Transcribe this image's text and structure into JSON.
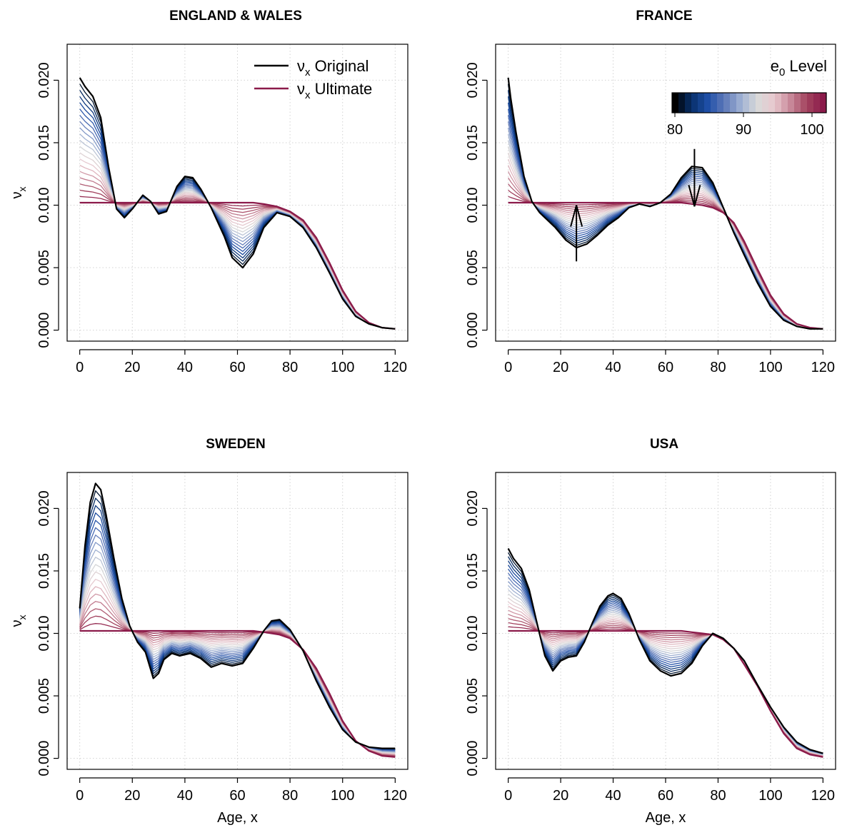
{
  "colors": {
    "original": "#000000",
    "ultimate": "#8B1A4A",
    "ramp": [
      "#000000",
      "#08306B",
      "#1F4FA8",
      "#5E79B8",
      "#9FB1D3",
      "#D9D9D9",
      "#E8C9CF",
      "#C98A9B",
      "#A3445F",
      "#8B1A4A"
    ]
  },
  "legend": {
    "original_sym": "ν",
    "original_sub": "x",
    "original_label": " Original",
    "ultimate_sym": "ν",
    "ultimate_sub": "x",
    "ultimate_label": " Ultimate"
  },
  "colorbar": {
    "title_main": "e",
    "title_sub": "0",
    "title_rest": " Level",
    "ticks": [
      "80",
      "90",
      "100"
    ]
  },
  "chart_data": [
    {
      "type": "line",
      "title": "ENGLAND & WALES",
      "xlabel": "",
      "ylabel_sym": "ν",
      "ylabel_sub": "x",
      "xlim": [
        0,
        120
      ],
      "ylim": [
        0,
        0.022
      ],
      "xticks": [
        "0",
        "20",
        "40",
        "60",
        "80",
        "100",
        "120"
      ],
      "yticks": [
        "0.000",
        "0.005",
        "0.010",
        "0.015",
        "0.020"
      ],
      "grid": true,
      "num_interpolated_curves": 20,
      "x": [
        0,
        2,
        5,
        8,
        11,
        14,
        17,
        20,
        24,
        27,
        30,
        33,
        37,
        40,
        43,
        46,
        50,
        55,
        58,
        62,
        66,
        70,
        75,
        80,
        85,
        90,
        95,
        100,
        105,
        110,
        115,
        120
      ],
      "series": [
        {
          "values": [
            0.0202,
            0.0195,
            0.0187,
            0.017,
            0.013,
            0.0097,
            0.009,
            0.0097,
            0.0108,
            0.0103,
            0.0093,
            0.0095,
            0.0115,
            0.0123,
            0.0122,
            0.0113,
            0.0098,
            0.0075,
            0.0058,
            0.005,
            0.0061,
            0.0082,
            0.0094,
            0.0091,
            0.0082,
            0.0066,
            0.0046,
            0.0025,
            0.0011,
            0.0005,
            0.0002,
            0.0001
          ]
        },
        {
          "values": [
            0.0102,
            0.0102,
            0.0102,
            0.0102,
            0.0102,
            0.0102,
            0.0102,
            0.0102,
            0.0102,
            0.0102,
            0.0102,
            0.0102,
            0.0102,
            0.0102,
            0.0102,
            0.0102,
            0.0102,
            0.0102,
            0.0102,
            0.0102,
            0.0102,
            0.0101,
            0.0099,
            0.0095,
            0.0088,
            0.0074,
            0.0054,
            0.0032,
            0.0015,
            0.0006,
            0.0002,
            0.0001
          ]
        }
      ]
    },
    {
      "type": "line",
      "title": "FRANCE",
      "xlabel": "",
      "ylabel_sym": "",
      "ylabel_sub": "",
      "xlim": [
        0,
        120
      ],
      "ylim": [
        0,
        0.022
      ],
      "xticks": [
        "0",
        "20",
        "40",
        "60",
        "80",
        "100",
        "120"
      ],
      "yticks": [
        "0.000",
        "0.005",
        "0.010",
        "0.015",
        "0.020"
      ],
      "grid": true,
      "num_interpolated_curves": 20,
      "x": [
        0,
        1,
        3,
        6,
        9,
        12,
        15,
        18,
        22,
        26,
        30,
        34,
        38,
        42,
        46,
        50,
        54,
        58,
        62,
        66,
        70,
        74,
        78,
        82,
        86,
        90,
        95,
        100,
        105,
        110,
        115,
        120
      ],
      "series": [
        {
          "values": [
            0.0202,
            0.0185,
            0.0158,
            0.0123,
            0.0103,
            0.0094,
            0.0088,
            0.0082,
            0.0072,
            0.0066,
            0.0069,
            0.0076,
            0.0084,
            0.009,
            0.0098,
            0.0101,
            0.0099,
            0.0102,
            0.0109,
            0.0122,
            0.0131,
            0.013,
            0.0118,
            0.0098,
            0.0078,
            0.006,
            0.0038,
            0.0019,
            0.0008,
            0.0003,
            0.0001,
            0.0001
          ]
        },
        {
          "values": [
            0.0102,
            0.0102,
            0.0102,
            0.0102,
            0.0102,
            0.0102,
            0.0102,
            0.0102,
            0.0102,
            0.0102,
            0.0102,
            0.0102,
            0.0102,
            0.0102,
            0.0102,
            0.0102,
            0.0102,
            0.0102,
            0.0102,
            0.0102,
            0.0101,
            0.01,
            0.0098,
            0.0094,
            0.0086,
            0.0071,
            0.0049,
            0.0028,
            0.0013,
            0.0005,
            0.0002,
            0.0001
          ]
        }
      ],
      "arrows": [
        {
          "x": 26,
          "from": 0.0055,
          "to": 0.01
        },
        {
          "x": 71,
          "from": 0.0145,
          "to": 0.0099
        }
      ]
    },
    {
      "type": "line",
      "title": "SWEDEN",
      "xlabel": "Age, x",
      "ylabel_sym": "ν",
      "ylabel_sub": "x",
      "xlim": [
        0,
        120
      ],
      "ylim": [
        0,
        0.022
      ],
      "xticks": [
        "0",
        "20",
        "40",
        "60",
        "80",
        "100",
        "120"
      ],
      "yticks": [
        "0.000",
        "0.005",
        "0.010",
        "0.015",
        "0.020"
      ],
      "grid": true,
      "num_interpolated_curves": 20,
      "x": [
        0,
        2,
        4,
        6,
        8,
        10,
        13,
        16,
        19,
        22,
        25,
        28,
        30,
        32,
        35,
        38,
        42,
        46,
        50,
        54,
        58,
        62,
        66,
        70,
        73,
        76,
        80,
        85,
        90,
        95,
        100,
        105,
        110,
        115,
        120
      ],
      "series": [
        {
          "values": [
            0.012,
            0.017,
            0.0205,
            0.022,
            0.0215,
            0.0195,
            0.016,
            0.0128,
            0.0106,
            0.0093,
            0.0085,
            0.0064,
            0.0068,
            0.0079,
            0.0084,
            0.0082,
            0.0084,
            0.008,
            0.0073,
            0.0076,
            0.0074,
            0.0076,
            0.0088,
            0.0102,
            0.011,
            0.0111,
            0.0103,
            0.0086,
            0.0062,
            0.0041,
            0.0023,
            0.0013,
            0.0009,
            0.0008,
            0.0008
          ]
        },
        {
          "values": [
            0.0102,
            0.0102,
            0.0102,
            0.0102,
            0.0102,
            0.0102,
            0.0102,
            0.0102,
            0.0102,
            0.0102,
            0.0102,
            0.0102,
            0.0102,
            0.0102,
            0.0102,
            0.0102,
            0.0102,
            0.0102,
            0.0102,
            0.0102,
            0.0102,
            0.0102,
            0.0102,
            0.0101,
            0.01,
            0.0099,
            0.0096,
            0.0087,
            0.0072,
            0.0052,
            0.003,
            0.0014,
            0.0006,
            0.0002,
            0.0001
          ]
        }
      ]
    },
    {
      "type": "line",
      "title": "USA",
      "xlabel": "Age, x",
      "ylabel_sym": "",
      "ylabel_sub": "",
      "xlim": [
        0,
        120
      ],
      "ylim": [
        0,
        0.022
      ],
      "xticks": [
        "0",
        "20",
        "40",
        "60",
        "80",
        "100",
        "120"
      ],
      "yticks": [
        "0.000",
        "0.005",
        "0.010",
        "0.015",
        "0.020"
      ],
      "grid": true,
      "num_interpolated_curves": 20,
      "x": [
        0,
        2,
        5,
        8,
        11,
        14,
        17,
        20,
        23,
        26,
        29,
        32,
        35,
        38,
        40,
        43,
        46,
        50,
        54,
        58,
        62,
        66,
        70,
        74,
        78,
        82,
        86,
        90,
        95,
        100,
        105,
        110,
        115,
        120
      ],
      "series": [
        {
          "values": [
            0.0168,
            0.016,
            0.0152,
            0.0135,
            0.0108,
            0.0082,
            0.007,
            0.0078,
            0.0081,
            0.0082,
            0.0093,
            0.0108,
            0.0122,
            0.013,
            0.0132,
            0.0128,
            0.0116,
            0.0095,
            0.0078,
            0.007,
            0.0066,
            0.0068,
            0.0076,
            0.009,
            0.01,
            0.0096,
            0.0088,
            0.0078,
            0.0059,
            0.0041,
            0.0025,
            0.0013,
            0.0007,
            0.0004
          ]
        },
        {
          "values": [
            0.0102,
            0.0102,
            0.0102,
            0.0102,
            0.0102,
            0.0102,
            0.0102,
            0.0102,
            0.0102,
            0.0102,
            0.0102,
            0.0102,
            0.0102,
            0.0102,
            0.0102,
            0.0102,
            0.0102,
            0.0102,
            0.0102,
            0.0102,
            0.0102,
            0.0102,
            0.0101,
            0.01,
            0.0099,
            0.0095,
            0.0088,
            0.0075,
            0.0058,
            0.0038,
            0.002,
            0.0008,
            0.0003,
            0.0001
          ]
        }
      ]
    }
  ]
}
